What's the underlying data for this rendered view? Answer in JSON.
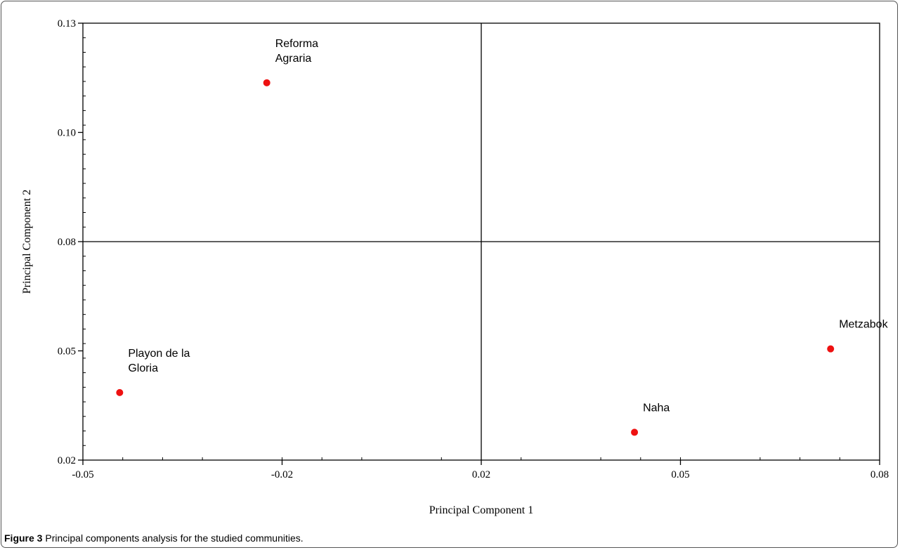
{
  "chart_data": {
    "type": "scatter",
    "title": "",
    "xlabel": "Principal Component 1",
    "ylabel": "Principal Component 2",
    "xlim": [
      -0.05,
      0.08
    ],
    "ylim": [
      0.02,
      0.13
    ],
    "x_ticks": [
      "-0.05",
      "-0.02",
      "0.02",
      "0.05",
      "0.08"
    ],
    "y_ticks": [
      "0.02",
      "0.05",
      "0.08",
      "0.10",
      "0.13"
    ],
    "reference_lines": {
      "x": 0.015,
      "y": 0.075
    },
    "marker_color": "#ee1111",
    "points": [
      {
        "label": [
          "Reforma",
          "Agraria"
        ],
        "x": -0.02,
        "y": 0.115
      },
      {
        "label": [
          "Playon de la",
          "Gloria"
        ],
        "x": -0.044,
        "y": 0.037
      },
      {
        "label": [
          "Naha"
        ],
        "x": 0.04,
        "y": 0.027
      },
      {
        "label": [
          "Metzabok"
        ],
        "x": 0.072,
        "y": 0.048
      }
    ]
  },
  "caption": {
    "label": "Figure 3",
    "text": " Principal components analysis for the studied communities."
  }
}
